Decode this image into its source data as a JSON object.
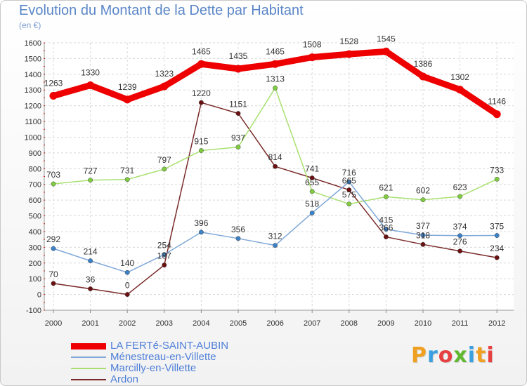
{
  "header": {
    "title": "Evolution du Montant de la Dette par Habitant",
    "subtitle": "(en €)"
  },
  "brand": {
    "text": "Proxiti",
    "colors": [
      "#f0a020",
      "#3aa0e0",
      "#e84040",
      "#60b830",
      "#3aa0e0",
      "#f0a020",
      "#e84040"
    ]
  },
  "chart_data": {
    "type": "line",
    "title": "Evolution du Montant de la Dette par Habitant",
    "ylabel": "(en €)",
    "xlabel": "",
    "x": [
      "2000",
      "2001",
      "2002",
      "2003",
      "2004",
      "2005",
      "2006",
      "2007",
      "2008",
      "2009",
      "2010",
      "2011",
      "2012"
    ],
    "ylim": [
      -100,
      1600
    ],
    "yticks": [
      -100,
      0,
      100,
      200,
      300,
      400,
      500,
      600,
      700,
      800,
      900,
      1000,
      1100,
      1200,
      1300,
      1400,
      1500,
      1600
    ],
    "grid": true,
    "legend_position": "bottom-left",
    "series": [
      {
        "name": "LA FERTé-SAINT-AUBIN",
        "color": "#ee0000",
        "marker": "#ee0000",
        "values": [
          1263,
          1330,
          1239,
          1323,
          1465,
          1435,
          1465,
          1508,
          1528,
          1545,
          1386,
          1302,
          1146
        ]
      },
      {
        "name": "Ménestreau-en-Villette",
        "color": "#7fa8d8",
        "marker": "#3c82c8",
        "values": [
          292,
          214,
          140,
          254,
          396,
          356,
          312,
          518,
          716,
          415,
          377,
          374,
          375
        ]
      },
      {
        "name": "Marcilly-en-Villette",
        "color": "#a8e070",
        "marker": "#80cc40",
        "values": [
          703,
          727,
          731,
          797,
          915,
          937,
          1313,
          655,
          575,
          621,
          602,
          623,
          733
        ]
      },
      {
        "name": "Ardon",
        "color": "#7a2a2a",
        "marker": "#6a1010",
        "values": [
          70,
          36,
          0,
          187,
          1220,
          1151,
          814,
          741,
          665,
          366,
          318,
          276,
          234
        ]
      }
    ]
  }
}
